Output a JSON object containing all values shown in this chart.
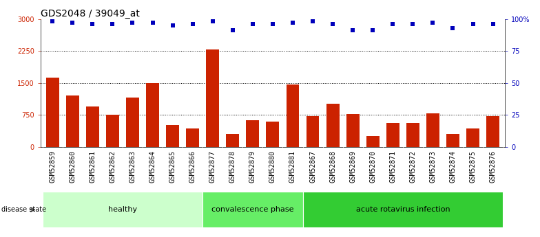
{
  "title": "GDS2048 / 39049_at",
  "samples": [
    "GSM52859",
    "GSM52860",
    "GSM52861",
    "GSM52862",
    "GSM52863",
    "GSM52864",
    "GSM52865",
    "GSM52866",
    "GSM52877",
    "GSM52878",
    "GSM52879",
    "GSM52880",
    "GSM52881",
    "GSM52867",
    "GSM52868",
    "GSM52869",
    "GSM52870",
    "GSM52871",
    "GSM52872",
    "GSM52873",
    "GSM52874",
    "GSM52875",
    "GSM52876"
  ],
  "counts": [
    1620,
    1200,
    950,
    750,
    1150,
    1500,
    520,
    430,
    2280,
    310,
    620,
    600,
    1460,
    730,
    1020,
    770,
    250,
    570,
    570,
    780,
    310,
    430,
    730
  ],
  "percentile_ranks": [
    98,
    97,
    96,
    96,
    97,
    97,
    95,
    96,
    98,
    91,
    96,
    96,
    97,
    98,
    96,
    91,
    91,
    96,
    96,
    97,
    93,
    96,
    96
  ],
  "groups": [
    {
      "label": "healthy",
      "start": 0,
      "end": 8,
      "color": "#ccffcc"
    },
    {
      "label": "convalescence phase",
      "start": 8,
      "end": 13,
      "color": "#66ee66"
    },
    {
      "label": "acute rotavirus infection",
      "start": 13,
      "end": 23,
      "color": "#33cc33"
    }
  ],
  "bar_color": "#cc2200",
  "dot_color": "#0000bb",
  "left_yticks": [
    0,
    750,
    1500,
    2250,
    3000
  ],
  "right_yticks": [
    0,
    25,
    50,
    75,
    100
  ],
  "ylim_left": [
    0,
    3000
  ],
  "ylim_right": [
    0,
    100
  ],
  "title_fontsize": 10,
  "tick_fontsize": 7,
  "label_fontsize": 8,
  "xtick_bg_color": "#c8c8c8"
}
